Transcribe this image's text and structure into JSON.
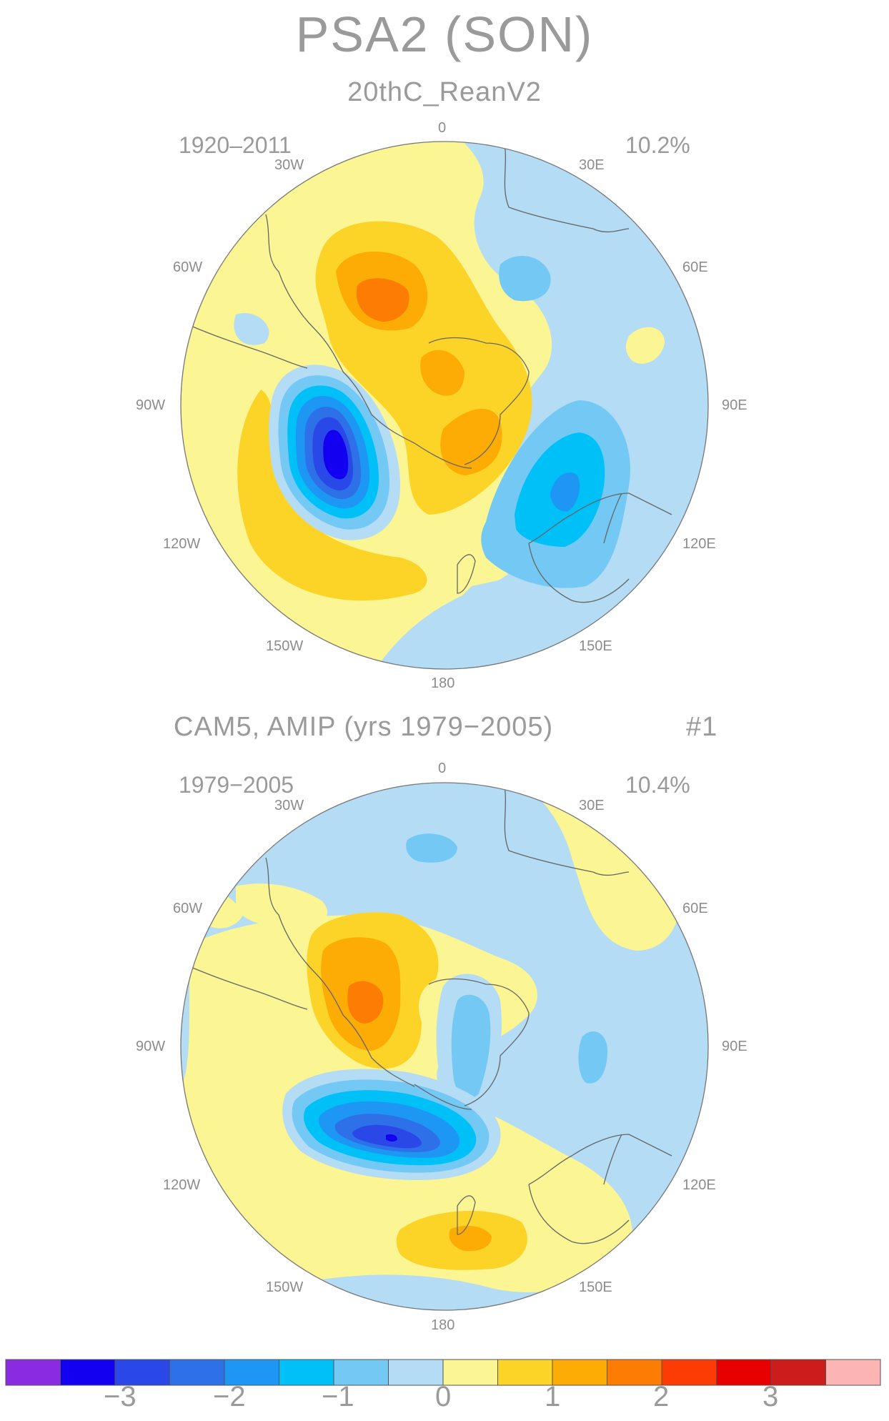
{
  "title": "PSA2 (SON)",
  "panels": [
    {
      "subtitle": "20thC_ReanV2",
      "period": "1920-2011",
      "variance": "10.2%",
      "run": ""
    },
    {
      "subtitle": "CAM5, AMIP (yrs 1979-2005)",
      "period": "1979-2005",
      "variance": "10.4%",
      "run": "#1"
    }
  ],
  "longitude_labels": [
    "0",
    "30E",
    "60E",
    "90E",
    "120E",
    "150E",
    "180",
    "150W",
    "120W",
    "90W",
    "60W",
    "30W"
  ],
  "colorbar": {
    "colors": [
      "#8a2be2",
      "#1400f0",
      "#2a48e8",
      "#2e70e8",
      "#1e96f4",
      "#00c0f8",
      "#74c8f4",
      "#b4dcf4",
      "#fcf594",
      "#fcd428",
      "#fcac04",
      "#fc7c04",
      "#fc3c04",
      "#e80000",
      "#cc1c1c",
      "#fcb4b4"
    ],
    "labels": [
      "-3",
      "-2",
      "-1",
      "0",
      "1",
      "2",
      "3"
    ]
  }
}
